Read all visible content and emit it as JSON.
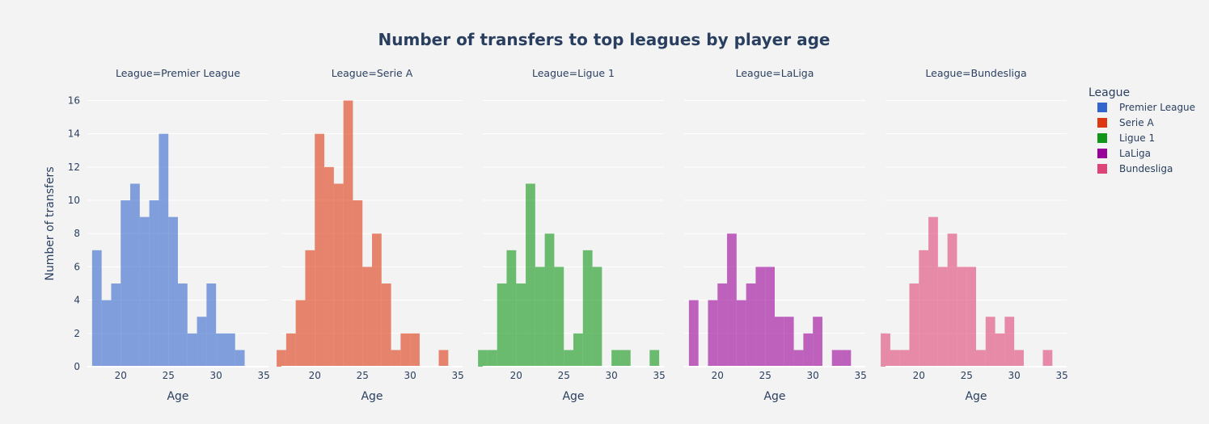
{
  "chart_data": {
    "type": "bar",
    "title": "Number of transfers to top leagues by player age",
    "xlabel": "Age",
    "ylabel": "Number of transfers",
    "xlim": [
      16.5,
      35.5
    ],
    "ylim": [
      0,
      16.8
    ],
    "x_ticks": [
      20,
      25,
      30,
      35
    ],
    "y_ticks": [
      0,
      2,
      4,
      6,
      8,
      10,
      12,
      14,
      16
    ],
    "grid": true,
    "bin_width": 1,
    "legend": {
      "title": "League",
      "placement": "right",
      "entries": [
        "Premier League",
        "Serie A",
        "Ligue 1",
        "LaLiga",
        "Bundesliga"
      ]
    },
    "series": [
      {
        "name": "Premier League",
        "facet_title": "League=Premier League",
        "color": "#3366cc",
        "x": [
          17.5,
          18.5,
          19.5,
          20.5,
          21.5,
          22.5,
          23.5,
          24.5,
          25.5,
          26.5,
          27.5,
          28.5,
          29.5,
          30.5,
          31.5,
          32.5
        ],
        "values": [
          7,
          4,
          5,
          10,
          11,
          9,
          10,
          14,
          9,
          5,
          2,
          3,
          5,
          2,
          2,
          1
        ]
      },
      {
        "name": "Serie A",
        "facet_title": "League=Serie A",
        "color": "#dc3912",
        "x": [
          16.5,
          17.5,
          18.5,
          19.5,
          20.5,
          21.5,
          22.5,
          23.5,
          24.5,
          25.5,
          26.5,
          27.5,
          28.5,
          29.5,
          30.5,
          33.5
        ],
        "values": [
          1,
          2,
          4,
          7,
          14,
          12,
          11,
          16,
          10,
          6,
          8,
          5,
          1,
          2,
          2,
          1
        ]
      },
      {
        "name": "Ligue 1",
        "facet_title": "League=Ligue 1",
        "color": "#109618",
        "x": [
          16.5,
          17.5,
          18.5,
          19.5,
          20.5,
          21.5,
          22.5,
          23.5,
          24.5,
          25.5,
          26.5,
          27.5,
          28.5,
          30.5,
          31.5,
          34.5
        ],
        "values": [
          1,
          1,
          5,
          7,
          5,
          11,
          6,
          8,
          6,
          1,
          2,
          7,
          6,
          1,
          1,
          1
        ]
      },
      {
        "name": "LaLiga",
        "facet_title": "League=LaLiga",
        "color": "#990099",
        "x": [
          17.5,
          19.5,
          20.5,
          21.5,
          22.5,
          23.5,
          24.5,
          25.5,
          26.5,
          27.5,
          28.5,
          29.5,
          30.5,
          32.5,
          33.5
        ],
        "values": [
          4,
          4,
          5,
          8,
          4,
          5,
          6,
          6,
          3,
          3,
          1,
          2,
          3,
          1,
          1
        ]
      },
      {
        "name": "Bundesliga",
        "facet_title": "League=Bundesliga",
        "color": "#dd4477",
        "x": [
          16.5,
          17.5,
          18.5,
          19.5,
          20.5,
          21.5,
          22.5,
          23.5,
          24.5,
          25.5,
          26.5,
          27.5,
          28.5,
          29.5,
          30.5,
          33.5
        ],
        "values": [
          2,
          1,
          1,
          5,
          7,
          9,
          6,
          8,
          6,
          6,
          1,
          3,
          2,
          3,
          1,
          1
        ]
      }
    ]
  }
}
